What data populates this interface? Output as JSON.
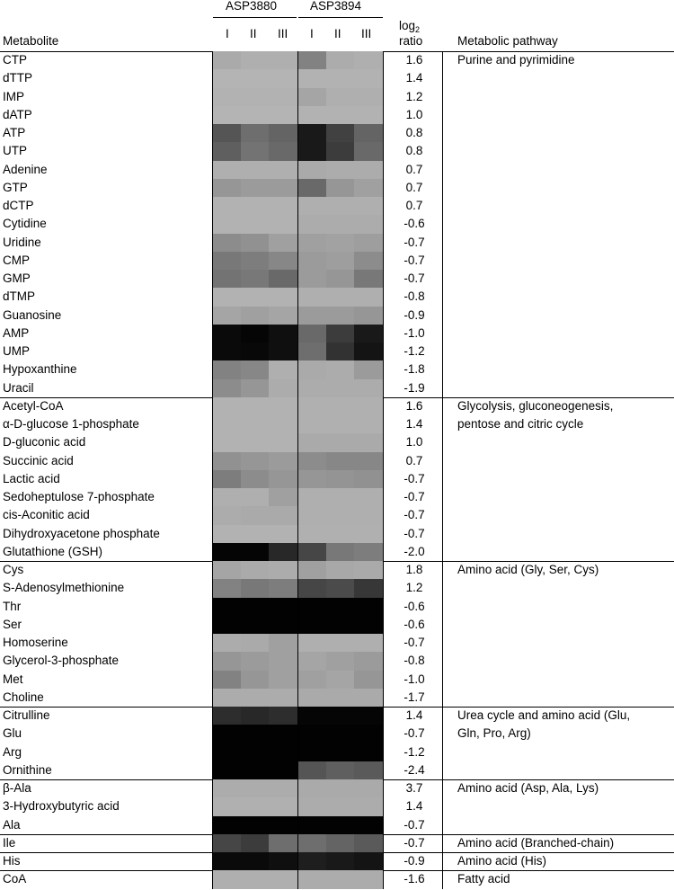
{
  "header": {
    "metabolite": "Metabolite",
    "group1": "ASP3880",
    "group2": "ASP3894",
    "replicates": [
      "I",
      "II",
      "III"
    ],
    "ratio_top": "log",
    "ratio_sub": "2",
    "ratio_bottom": "ratio",
    "pathway": "Metabolic pathway"
  },
  "chart_data": {
    "type": "heatmap",
    "columns": [
      "ASP3880 I",
      "ASP3880 II",
      "ASP3880 III",
      "ASP3894 I",
      "ASP3894 II",
      "ASP3894 III"
    ],
    "groups": [
      {
        "pathway": [
          "Purine and pyrimidine"
        ],
        "rows": [
          {
            "name": "CTP",
            "ratio": "1.6",
            "shades": [
              170,
              175,
              175,
              130,
              172,
              175
            ]
          },
          {
            "name": "dTTP",
            "ratio": "1.4",
            "shades": [
              180,
              180,
              180,
              178,
              178,
              178
            ]
          },
          {
            "name": "IMP",
            "ratio": "1.2",
            "shades": [
              178,
              178,
              178,
              165,
              175,
              175
            ]
          },
          {
            "name": "dATP",
            "ratio": "1.0",
            "shades": [
              180,
              180,
              180,
              178,
              178,
              178
            ]
          },
          {
            "name": "ATP",
            "ratio": "0.8",
            "shades": [
              85,
              110,
              100,
              25,
              65,
              100
            ]
          },
          {
            "name": "UTP",
            "ratio": "0.8",
            "shades": [
              95,
              115,
              105,
              25,
              60,
              105
            ]
          },
          {
            "name": "Adenine",
            "ratio": "0.7",
            "shades": [
              175,
              175,
              175,
              170,
              172,
              172
            ]
          },
          {
            "name": "GTP",
            "ratio": "0.7",
            "shades": [
              150,
              155,
              155,
              105,
              150,
              160
            ]
          },
          {
            "name": "dCTP",
            "ratio": "0.7",
            "shades": [
              178,
              178,
              178,
              175,
              175,
              175
            ]
          },
          {
            "name": "Cytidine",
            "ratio": "-0.6",
            "shades": [
              178,
              178,
              178,
              172,
              172,
              172
            ]
          },
          {
            "name": "Uridine",
            "ratio": "-0.7",
            "shades": [
              140,
              145,
              160,
              160,
              162,
              158
            ]
          },
          {
            "name": "CMP",
            "ratio": "-0.7",
            "shades": [
              120,
              125,
              135,
              155,
              158,
              140
            ]
          },
          {
            "name": "GMP",
            "ratio": "-0.7",
            "shades": [
              115,
              120,
              105,
              155,
              150,
              120
            ]
          },
          {
            "name": "dTMP",
            "ratio": "-0.8",
            "shades": [
              178,
              178,
              178,
              175,
              175,
              175
            ]
          },
          {
            "name": "Guanosine",
            "ratio": "-0.9",
            "shades": [
              165,
              160,
              165,
              155,
              155,
              150
            ]
          },
          {
            "name": "AMP",
            "ratio": "-1.0",
            "shades": [
              10,
              5,
              15,
              105,
              60,
              25
            ]
          },
          {
            "name": "UMP",
            "ratio": "-1.2",
            "shades": [
              10,
              8,
              15,
              110,
              50,
              20
            ]
          },
          {
            "name": "Hypoxanthine",
            "ratio": "-1.8",
            "shades": [
              130,
              135,
              175,
              170,
              172,
              155
            ]
          },
          {
            "name": "Uracil",
            "ratio": "-1.9",
            "shades": [
              140,
              150,
              172,
              172,
              172,
              172
            ]
          }
        ]
      },
      {
        "pathway": [
          "Glycolysis, gluconeogenesis,",
          "pentose and citric cycle"
        ],
        "rows": [
          {
            "name": "Acetyl-CoA",
            "ratio": "1.6",
            "shades": [
              178,
              178,
              178,
              176,
              176,
              176
            ]
          },
          {
            "name": "α-D-glucose 1-phosphate",
            "ratio": "1.4",
            "shades": [
              178,
              178,
              178,
              176,
              176,
              176
            ]
          },
          {
            "name": "D-gluconic acid",
            "ratio": "1.0",
            "shades": [
              178,
              178,
              178,
              170,
              170,
              170
            ]
          },
          {
            "name": "Succinic acid",
            "ratio": "0.7",
            "shades": [
              145,
              150,
              155,
              140,
              135,
              135
            ]
          },
          {
            "name": "Lactic acid",
            "ratio": "-0.7",
            "shades": [
              125,
              140,
              150,
              150,
              148,
              145
            ]
          },
          {
            "name": "Sedoheptulose 7-phosphate",
            "ratio": "-0.7",
            "shades": [
              175,
              175,
              160,
              175,
              175,
              175
            ]
          },
          {
            "name": "cis-Aconitic acid",
            "ratio": "-0.7",
            "shades": [
              172,
              170,
              170,
              175,
              175,
              175
            ]
          },
          {
            "name": "Dihydroxyacetone phosphate",
            "ratio": "-0.7",
            "shades": [
              178,
              178,
              178,
              176,
              176,
              176
            ]
          },
          {
            "name": "Glutathione (GSH)",
            "ratio": "-2.0",
            "shades": [
              5,
              5,
              40,
              70,
              120,
              125
            ]
          }
        ]
      },
      {
        "pathway": [
          "Amino acid (Gly, Ser, Cys)"
        ],
        "rows": [
          {
            "name": "Cys",
            "ratio": "1.8",
            "shades": [
              165,
              170,
              172,
              160,
              168,
              170
            ]
          },
          {
            "name": "S-Adenosylmethionine",
            "ratio": "1.2",
            "shades": [
              130,
              120,
              125,
              70,
              75,
              55
            ]
          },
          {
            "name": "Thr",
            "ratio": "-0.6",
            "shades": [
              2,
              2,
              2,
              2,
              2,
              2
            ]
          },
          {
            "name": "Ser",
            "ratio": "-0.6",
            "shades": [
              2,
              2,
              2,
              2,
              2,
              2
            ]
          },
          {
            "name": "Homoserine",
            "ratio": "-0.7",
            "shades": [
              172,
              170,
              160,
              175,
              175,
              175
            ]
          },
          {
            "name": "Glycerol-3-phosphate",
            "ratio": "-0.8",
            "shades": [
              150,
              155,
              160,
              165,
              160,
              155
            ]
          },
          {
            "name": "Met",
            "ratio": "-1.0",
            "shades": [
              130,
              150,
              160,
              160,
              165,
              150
            ]
          },
          {
            "name": "Choline",
            "ratio": "-1.7",
            "shades": [
              172,
              172,
              172,
              170,
              170,
              170
            ]
          }
        ]
      },
      {
        "pathway": [
          "Urea cycle and amino acid (Glu,",
          "Gln, Pro, Arg)"
        ],
        "rows": [
          {
            "name": "Citrulline",
            "ratio": "1.4",
            "shades": [
              45,
              40,
              45,
              5,
              5,
              5
            ]
          },
          {
            "name": "Glu",
            "ratio": "-0.7",
            "shades": [
              2,
              2,
              2,
              2,
              2,
              2
            ]
          },
          {
            "name": "Arg",
            "ratio": "-1.2",
            "shades": [
              2,
              2,
              2,
              2,
              2,
              2
            ]
          },
          {
            "name": "Ornithine",
            "ratio": "-2.4",
            "shades": [
              2,
              2,
              2,
              85,
              95,
              90
            ]
          }
        ]
      },
      {
        "pathway": [
          "Amino acid (Asp, Ala, Lys)"
        ],
        "rows": [
          {
            "name": "β-Ala",
            "ratio": "3.7",
            "shades": [
              172,
              172,
              172,
              170,
              170,
              170
            ]
          },
          {
            "name": "3-Hydroxybutyric acid",
            "ratio": "1.4",
            "shades": [
              176,
              176,
              176,
              172,
              172,
              172
            ]
          },
          {
            "name": "Ala",
            "ratio": "-0.7",
            "shades": [
              2,
              2,
              2,
              2,
              2,
              2
            ]
          }
        ]
      },
      {
        "pathway": [
          "Amino acid (Branched-chain)"
        ],
        "rows": [
          {
            "name": "Ile",
            "ratio": "-0.7",
            "shades": [
              70,
              60,
              110,
              110,
              100,
              90
            ]
          }
        ]
      },
      {
        "pathway": [
          "Amino acid (His)"
        ],
        "rows": [
          {
            "name": "His",
            "ratio": "-0.9",
            "shades": [
              10,
              10,
              15,
              30,
              25,
              20
            ]
          }
        ]
      },
      {
        "pathway": [
          "Fatty acid"
        ],
        "rows": [
          {
            "name": "CoA",
            "ratio": "-1.6",
            "shades": [
              175,
              175,
              175,
              172,
              172,
              172
            ]
          }
        ]
      }
    ]
  }
}
